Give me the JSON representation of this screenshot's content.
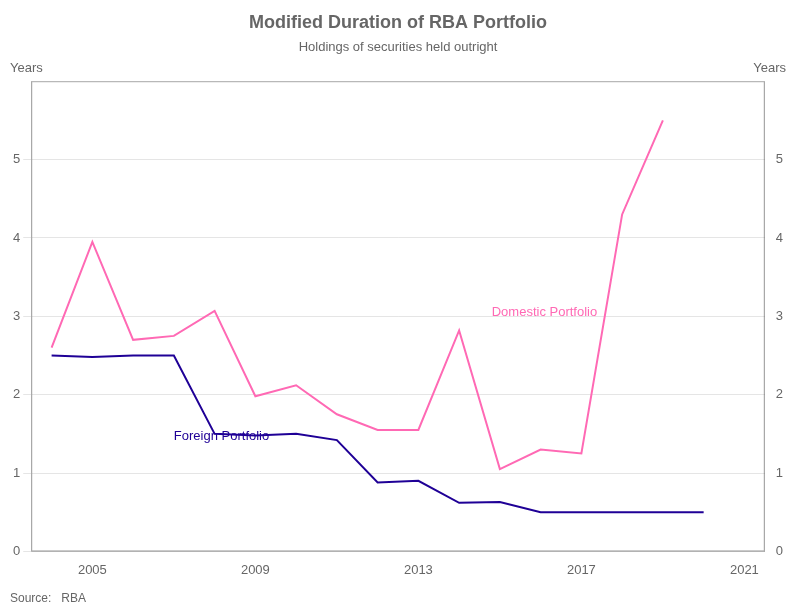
{
  "chart_data": {
    "type": "line",
    "title": "Modified Duration of RBA Portfolio",
    "subtitle": "Holdings of securities held outright",
    "ylabel": "Years",
    "y2label": "Years",
    "source": "Source:   RBA",
    "x": [
      2004,
      2005,
      2006,
      2007,
      2008,
      2009,
      2010,
      2011,
      2012,
      2013,
      2014,
      2015,
      2016,
      2017,
      2018,
      2019,
      2020,
      2021
    ],
    "series": [
      {
        "name": "Domestic Portfolio",
        "color": "#FF69B4",
        "values": [
          2.6,
          3.95,
          2.7,
          2.75,
          3.07,
          1.98,
          2.12,
          1.75,
          1.55,
          1.55,
          2.82,
          1.05,
          1.3,
          1.25,
          4.3,
          5.5,
          null,
          null
        ]
      },
      {
        "name": "Foreign Portfolio",
        "color": "#1F0096",
        "values": [
          2.5,
          2.48,
          2.5,
          2.5,
          1.5,
          1.48,
          1.5,
          1.42,
          0.88,
          0.9,
          0.62,
          0.63,
          0.5,
          0.5,
          0.5,
          0.5,
          0.5,
          null
        ]
      }
    ],
    "annotations": [
      {
        "text": "Domestic Portfolio",
        "x": 2014.8,
        "y": 3.0,
        "color": "#FF69B4"
      },
      {
        "text": "Foreign Portfolio",
        "x": 2007.0,
        "y": 1.42,
        "color": "#1F0096"
      }
    ],
    "xlim": [
      2003.5,
      2021.5
    ],
    "xticks": [
      2005,
      2009,
      2013,
      2017,
      2021
    ],
    "ylim": [
      0,
      6
    ],
    "yticks": [
      0,
      1,
      2,
      3,
      4,
      5
    ],
    "y2lim": [
      0,
      6
    ],
    "y2ticks": [
      0,
      1,
      2,
      3,
      4,
      5
    ],
    "grid": true
  }
}
